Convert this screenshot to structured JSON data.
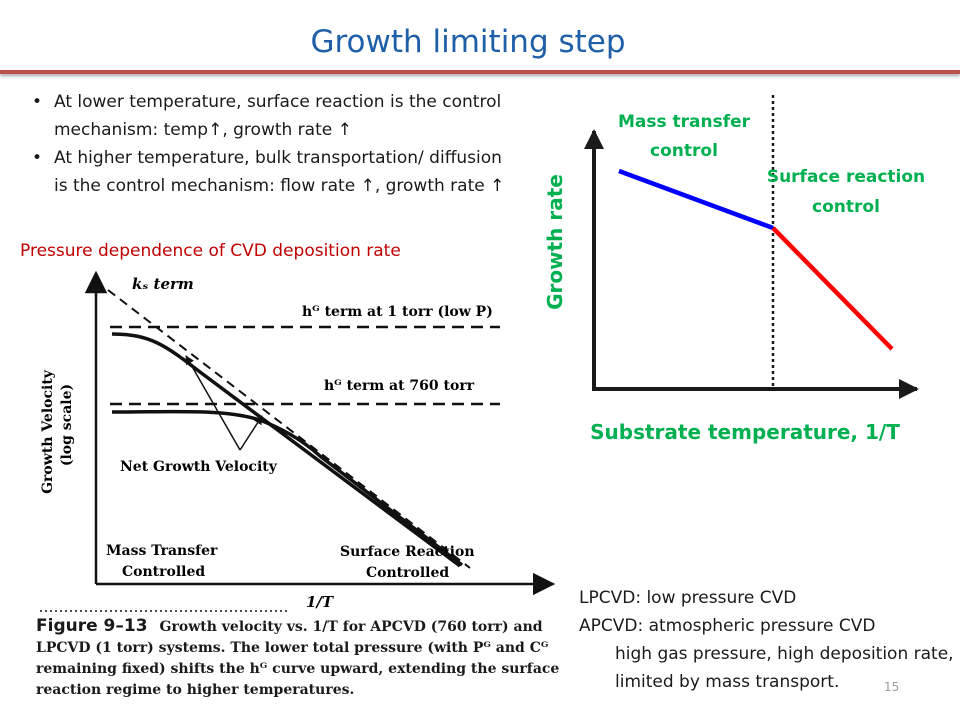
{
  "title": "Growth limiting step",
  "bullets": [
    "At lower temperature, surface reaction is the control mechanism: temp↑, growth rate ↑",
    "At higher temperature, bulk transportation/ diffusion is the control mechanism: flow rate ↑, growth rate ↑"
  ],
  "left_figure": {
    "caption_heading": "Pressure dependence of CVD deposition rate",
    "y_axis_label_line1": "Growth Velocity",
    "y_axis_label_line2": "(log scale)",
    "x_axis_label": "1/T",
    "ks_term_label": "kₛ term",
    "hg_low_label": "hᴳ term at 1 torr (low P)",
    "hg_high_label": "hᴳ term at 760 torr",
    "net_growth_label": "Net Growth Velocity",
    "mass_transfer_label_line1": "Mass Transfer",
    "mass_transfer_label_line2": "Controlled",
    "surface_reaction_label_line1": "Surface Reaction",
    "surface_reaction_label_line2": "Controlled",
    "figure_label": "Figure 9–13",
    "figure_caption": "Growth velocity vs. 1/T for APCVD (760 torr) and LPCVD (1 torr) systems. The lower total pressure (with Pᴳ and Cᴳ remaining fixed) shifts the hᴳ curve upward, extending the surface reaction regime to higher temperatures."
  },
  "right_figure": {
    "y_axis_label": "Growth rate",
    "x_axis_label": "Substrate temperature, 1/T",
    "mass_transfer_label_line1": "Mass transfer",
    "mass_transfer_label_line2": "control",
    "surface_reaction_label_line1": "Surface reaction",
    "surface_reaction_label_line2": "control",
    "mass_transfer_color": "#0000ff",
    "surface_reaction_color": "#ff0000",
    "label_color": "#00b050"
  },
  "notes": {
    "lpcvd": "LPCVD: low pressure CVD",
    "apcvd": "APCVD: atmospheric pressure CVD",
    "apcvd_detail": "high gas pressure, high deposition rate, limited by mass transport."
  },
  "page_number": "15"
}
